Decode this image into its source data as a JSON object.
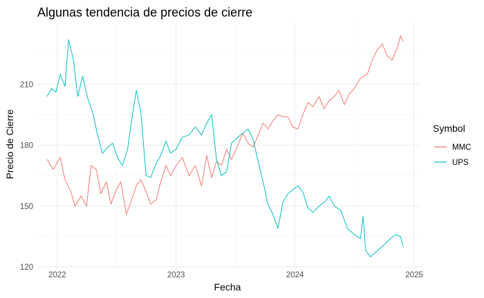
{
  "chart_data": {
    "type": "line",
    "title": "Algunas tendencia de precios de cierre",
    "xlabel": "Fecha",
    "ylabel": "Precio de Cierre",
    "legend_title": "Symbol",
    "legend_position": "right",
    "grid": true,
    "xlim": [
      "2021-11-01",
      "2025-01-20"
    ],
    "ylim": [
      119,
      240
    ],
    "x_ticks": [
      "2022-01-01",
      "2023-01-01",
      "2024-01-01",
      "2025-01-01"
    ],
    "x_tick_labels": [
      "2022",
      "2023",
      "2024",
      "2025"
    ],
    "y_ticks": [
      120,
      150,
      180,
      210
    ],
    "y_tick_labels": [
      "120",
      "150",
      "180",
      "210"
    ],
    "series": [
      {
        "name": "MMC",
        "color": "#F8766D",
        "points": [
          [
            "2021-12-01",
            173
          ],
          [
            "2021-12-20",
            168
          ],
          [
            "2022-01-10",
            174
          ],
          [
            "2022-01-25",
            163
          ],
          [
            "2022-02-10",
            158
          ],
          [
            "2022-02-25",
            150
          ],
          [
            "2022-03-15",
            155
          ],
          [
            "2022-04-01",
            150
          ],
          [
            "2022-04-15",
            170
          ],
          [
            "2022-05-01",
            168
          ],
          [
            "2022-05-15",
            156
          ],
          [
            "2022-06-01",
            162
          ],
          [
            "2022-06-15",
            151
          ],
          [
            "2022-07-01",
            158
          ],
          [
            "2022-07-15",
            162
          ],
          [
            "2022-08-01",
            146
          ],
          [
            "2022-08-15",
            152
          ],
          [
            "2022-09-01",
            160
          ],
          [
            "2022-09-15",
            163
          ],
          [
            "2022-10-01",
            157
          ],
          [
            "2022-10-15",
            151
          ],
          [
            "2022-11-01",
            153
          ],
          [
            "2022-11-15",
            162
          ],
          [
            "2022-12-01",
            170
          ],
          [
            "2022-12-15",
            165
          ],
          [
            "2023-01-01",
            170
          ],
          [
            "2023-01-20",
            174
          ],
          [
            "2023-02-10",
            165
          ],
          [
            "2023-03-01",
            170
          ],
          [
            "2023-03-20",
            160
          ],
          [
            "2023-04-05",
            175
          ],
          [
            "2023-04-20",
            164
          ],
          [
            "2023-05-05",
            172
          ],
          [
            "2023-05-20",
            170
          ],
          [
            "2023-06-05",
            178
          ],
          [
            "2023-06-20",
            173
          ],
          [
            "2023-07-10",
            180
          ],
          [
            "2023-07-25",
            186
          ],
          [
            "2023-08-10",
            181
          ],
          [
            "2023-08-25",
            179
          ],
          [
            "2023-09-10",
            185
          ],
          [
            "2023-09-25",
            191
          ],
          [
            "2023-10-10",
            188
          ],
          [
            "2023-10-25",
            192
          ],
          [
            "2023-11-10",
            195
          ],
          [
            "2023-11-25",
            194
          ],
          [
            "2023-12-10",
            194
          ],
          [
            "2023-12-25",
            189
          ],
          [
            "2024-01-10",
            188
          ],
          [
            "2024-01-25",
            195
          ],
          [
            "2024-02-10",
            201
          ],
          [
            "2024-02-25",
            199
          ],
          [
            "2024-03-15",
            204
          ],
          [
            "2024-03-30",
            198
          ],
          [
            "2024-04-15",
            202
          ],
          [
            "2024-05-01",
            204
          ],
          [
            "2024-05-15",
            207
          ],
          [
            "2024-06-01",
            200
          ],
          [
            "2024-06-15",
            205
          ],
          [
            "2024-07-01",
            208
          ],
          [
            "2024-07-20",
            213
          ],
          [
            "2024-08-10",
            215
          ],
          [
            "2024-08-25",
            222
          ],
          [
            "2024-09-10",
            227
          ],
          [
            "2024-09-25",
            230
          ],
          [
            "2024-10-10",
            224
          ],
          [
            "2024-10-25",
            222
          ],
          [
            "2024-11-10",
            228
          ],
          [
            "2024-11-20",
            234
          ],
          [
            "2024-11-28",
            231
          ]
        ]
      },
      {
        "name": "UPS",
        "color": "#00BFC4",
        "points": [
          [
            "2021-12-01",
            204
          ],
          [
            "2021-12-15",
            208
          ],
          [
            "2021-12-28",
            206
          ],
          [
            "2022-01-10",
            215
          ],
          [
            "2022-01-25",
            209
          ],
          [
            "2022-02-05",
            232
          ],
          [
            "2022-02-20",
            222
          ],
          [
            "2022-03-05",
            204
          ],
          [
            "2022-03-20",
            214
          ],
          [
            "2022-04-05",
            203
          ],
          [
            "2022-04-20",
            196
          ],
          [
            "2022-05-05",
            185
          ],
          [
            "2022-05-20",
            176
          ],
          [
            "2022-06-05",
            179
          ],
          [
            "2022-06-20",
            181
          ],
          [
            "2022-07-05",
            174
          ],
          [
            "2022-07-20",
            170
          ],
          [
            "2022-08-05",
            178
          ],
          [
            "2022-08-20",
            195
          ],
          [
            "2022-09-01",
            207
          ],
          [
            "2022-09-15",
            196
          ],
          [
            "2022-10-01",
            165
          ],
          [
            "2022-10-15",
            164
          ],
          [
            "2022-11-01",
            171
          ],
          [
            "2022-11-15",
            175
          ],
          [
            "2022-12-01",
            182
          ],
          [
            "2022-12-15",
            176
          ],
          [
            "2023-01-01",
            178
          ],
          [
            "2023-01-20",
            184
          ],
          [
            "2023-02-10",
            185
          ],
          [
            "2023-03-01",
            189
          ],
          [
            "2023-03-20",
            185
          ],
          [
            "2023-04-05",
            191
          ],
          [
            "2023-04-20",
            195
          ],
          [
            "2023-05-05",
            173
          ],
          [
            "2023-05-20",
            165
          ],
          [
            "2023-06-05",
            167
          ],
          [
            "2023-06-20",
            181
          ],
          [
            "2023-07-10",
            184
          ],
          [
            "2023-07-25",
            186
          ],
          [
            "2023-08-10",
            188
          ],
          [
            "2023-08-25",
            183
          ],
          [
            "2023-09-10",
            172
          ],
          [
            "2023-09-25",
            162
          ],
          [
            "2023-10-10",
            151
          ],
          [
            "2023-10-25",
            146
          ],
          [
            "2023-11-10",
            139
          ],
          [
            "2023-11-25",
            152
          ],
          [
            "2023-12-10",
            156
          ],
          [
            "2023-12-25",
            158
          ],
          [
            "2024-01-10",
            160
          ],
          [
            "2024-01-25",
            157
          ],
          [
            "2024-02-10",
            149
          ],
          [
            "2024-02-25",
            147
          ],
          [
            "2024-03-15",
            150
          ],
          [
            "2024-04-01",
            152
          ],
          [
            "2024-04-15",
            155
          ],
          [
            "2024-05-01",
            150
          ],
          [
            "2024-05-20",
            148
          ],
          [
            "2024-06-10",
            139
          ],
          [
            "2024-07-01",
            136
          ],
          [
            "2024-07-20",
            134
          ],
          [
            "2024-07-28",
            145
          ],
          [
            "2024-08-05",
            128
          ],
          [
            "2024-08-20",
            125
          ],
          [
            "2024-09-10",
            128
          ],
          [
            "2024-10-01",
            131
          ],
          [
            "2024-10-20",
            134
          ],
          [
            "2024-11-05",
            136
          ],
          [
            "2024-11-20",
            135
          ],
          [
            "2024-11-28",
            130
          ]
        ]
      }
    ]
  }
}
